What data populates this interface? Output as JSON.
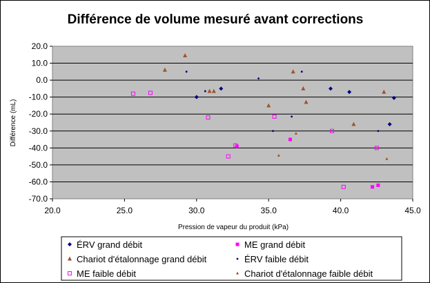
{
  "chart_data": {
    "type": "scatter",
    "title": "Différence de volume mesuré avant corrections",
    "xlabel": "Pression de vapeur du produit (kPa)",
    "ylabel": "Différence (mL)",
    "xlim": [
      20.0,
      45.0
    ],
    "ylim": [
      -70.0,
      20.0
    ],
    "x_ticks": [
      "20.0",
      "25.0",
      "30.0",
      "35.0",
      "40.0",
      "45.0"
    ],
    "y_ticks": [
      "20.0",
      "10.0",
      "0.0",
      "-10.0",
      "-20.0",
      "-30.0",
      "-40.0",
      "-50.0",
      "-60.0",
      "-70.0"
    ],
    "grid": "horizontal",
    "plot_background": "#c0c0c0",
    "legend_position": "bottom",
    "series": [
      {
        "name": "ÉRV grand débit",
        "marker": "diamond",
        "color": "#000080",
        "points": [
          [
            30.0,
            -10
          ],
          [
            31.7,
            -5
          ],
          [
            39.3,
            -5
          ],
          [
            40.6,
            -7
          ],
          [
            43.4,
            -26
          ],
          [
            43.7,
            -10.5
          ]
        ]
      },
      {
        "name": "ME grand débit",
        "marker": "square",
        "color": "#ff00ff",
        "points": [
          [
            32.8,
            -39
          ],
          [
            36.5,
            -35
          ],
          [
            42.2,
            -63
          ],
          [
            42.6,
            -62
          ]
        ]
      },
      {
        "name": "Chariot d'étalonnage grand débit",
        "marker": "triangle",
        "color": "#a0522d",
        "points": [
          [
            27.8,
            6
          ],
          [
            29.2,
            14.5
          ],
          [
            30.9,
            -6.5
          ],
          [
            31.2,
            -6.5
          ],
          [
            35.0,
            -15
          ],
          [
            36.7,
            5
          ],
          [
            37.4,
            -5
          ],
          [
            37.6,
            -13
          ],
          [
            40.9,
            -26
          ],
          [
            43.0,
            -7
          ]
        ]
      },
      {
        "name": "ÉRV faible débit",
        "marker": "dot",
        "color": "#000080",
        "points": [
          [
            29.3,
            5
          ],
          [
            30.6,
            -6.5
          ],
          [
            34.3,
            1
          ],
          [
            35.3,
            -30
          ],
          [
            36.6,
            -21.5
          ],
          [
            37.3,
            5
          ],
          [
            42.6,
            -30
          ]
        ]
      },
      {
        "name": "ME faible débit",
        "marker": "open-square",
        "color": "#ff00ff",
        "points": [
          [
            25.6,
            -8
          ],
          [
            26.8,
            -7.5
          ],
          [
            30.8,
            -22
          ],
          [
            32.2,
            -45
          ],
          [
            32.7,
            -38.5
          ],
          [
            35.4,
            -21.5
          ],
          [
            39.4,
            -30
          ],
          [
            40.2,
            -63
          ],
          [
            42.5,
            -40
          ]
        ]
      },
      {
        "name": "Chariot d'étalonnage faible débit",
        "marker": "small-triangle",
        "color": "#a0522d",
        "points": [
          [
            35.7,
            -44.5
          ],
          [
            36.9,
            -31.5
          ],
          [
            43.2,
            -46.5
          ]
        ]
      }
    ]
  }
}
